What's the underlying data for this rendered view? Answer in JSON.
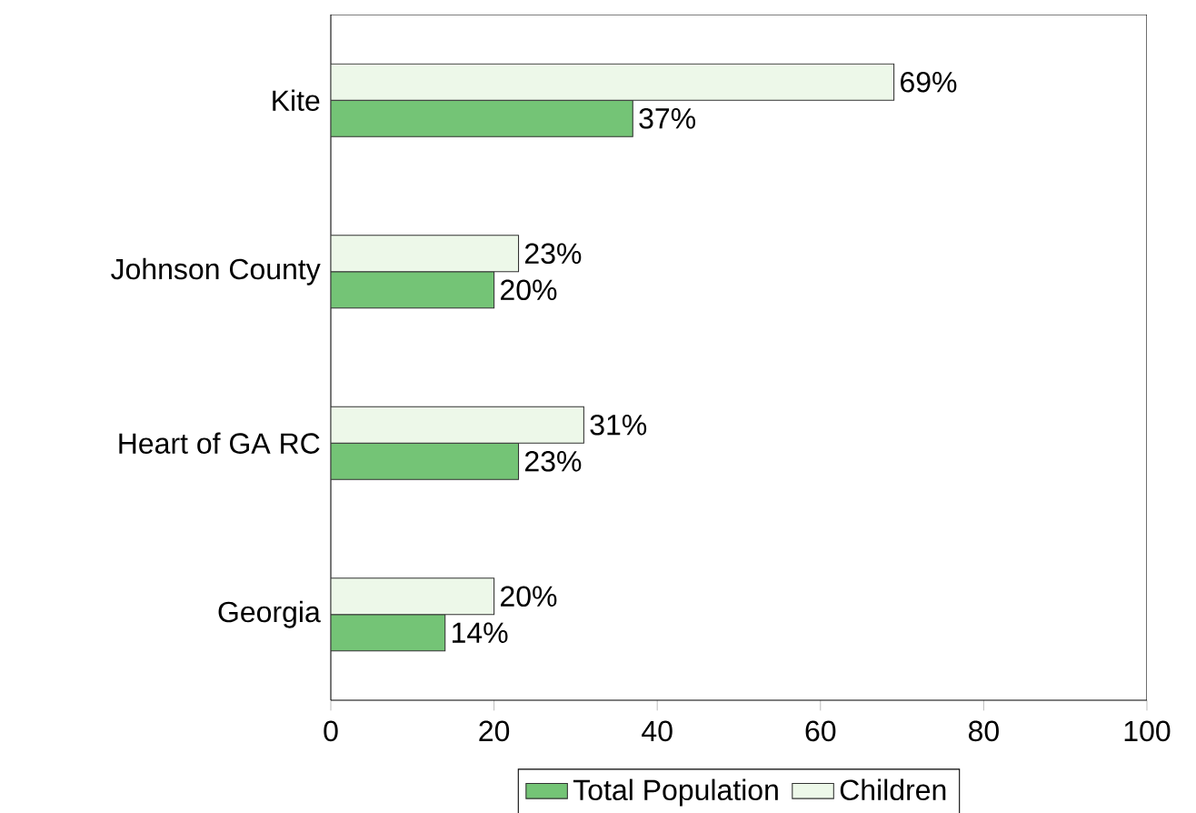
{
  "chart_data": {
    "type": "bar",
    "orientation": "horizontal",
    "categories": [
      "Kite",
      "Johnson County",
      "Heart of GA RC",
      "Georgia"
    ],
    "series": [
      {
        "name": "Total Population",
        "color": "#74c476",
        "values": [
          37,
          20,
          23,
          14
        ],
        "value_labels": [
          "37%",
          "20%",
          "23%",
          "14%"
        ]
      },
      {
        "name": "Children",
        "color": "#edf8e9",
        "values": [
          69,
          23,
          31,
          20
        ],
        "value_labels": [
          "69%",
          "23%",
          "31%",
          "20%"
        ]
      }
    ],
    "xlim": [
      0,
      100
    ],
    "xticks": [
      0,
      20,
      40,
      60,
      80,
      100
    ],
    "grid": false,
    "legend": "bottom"
  }
}
